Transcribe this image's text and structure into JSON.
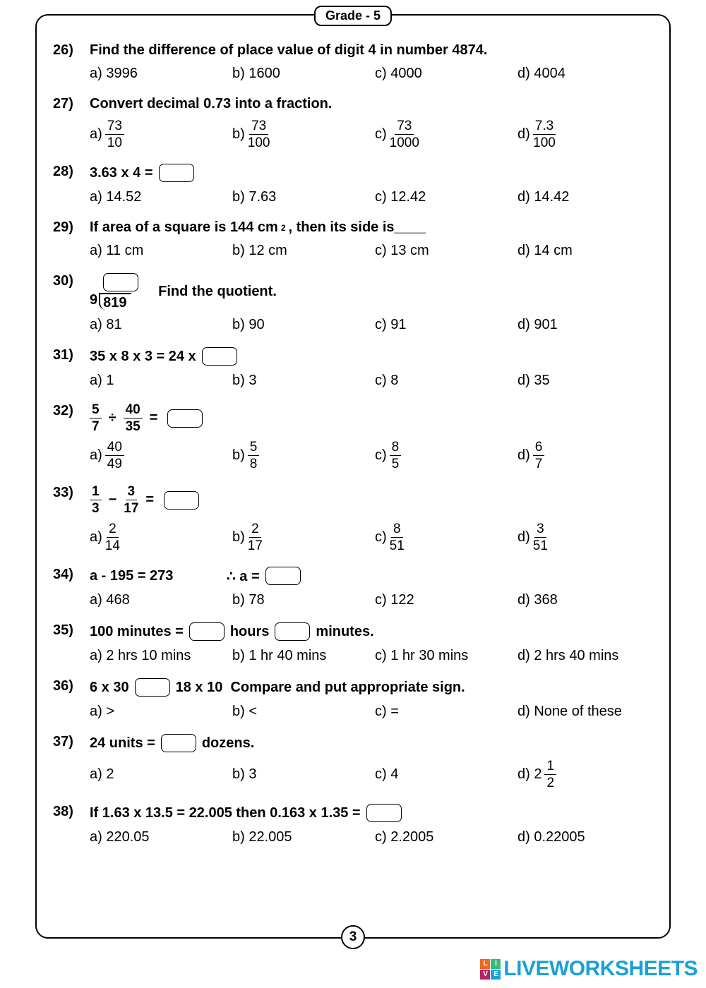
{
  "header": {
    "grade_label": "Grade - 5"
  },
  "footer": {
    "page_number": "3"
  },
  "watermark": {
    "text": "LIVEWORKSHEETS",
    "logo_colors": [
      "#f26522",
      "#3cb878",
      "#b72467",
      "#1aa0d8"
    ],
    "logo_letters": [
      "L",
      "I",
      "V",
      "E"
    ]
  },
  "questions": [
    {
      "num": "26)",
      "text": "Find the difference of place value of digit 4 in number 4874.",
      "opts": [
        "a) 3996",
        "b) 1600",
        "c) 4000",
        "d) 4004"
      ]
    },
    {
      "num": "27)",
      "text": "Convert decimal 0.73 into a fraction.",
      "opts_frac": [
        {
          "label": "a)",
          "n": "73",
          "d": "10"
        },
        {
          "label": "b)",
          "n": "73",
          "d": "100"
        },
        {
          "label": "c)",
          "n": "73",
          "d": "1000"
        },
        {
          "label": "d)",
          "n": "7.3",
          "d": "100"
        }
      ]
    },
    {
      "num": "28)",
      "text_parts": [
        "3.63 x 4 ="
      ],
      "opts": [
        "a) 14.52",
        "b) 7.63",
        "c) 12.42",
        "d) 14.42"
      ]
    },
    {
      "num": "29)",
      "text": "If area of a square is 144 cm², then its side is____",
      "opts": [
        "a) 11 cm",
        "b) 12 cm",
        "c) 13 cm",
        "d) 14 cm"
      ]
    },
    {
      "num": "30)",
      "longdiv": {
        "divisor": "9",
        "dividend": "819",
        "suffix": "Find the quotient."
      },
      "opts": [
        "a) 81",
        "b) 90",
        "c) 91",
        "d) 901"
      ]
    },
    {
      "num": "31)",
      "text_parts": [
        "35 x 8 x 3 = 24 x"
      ],
      "opts": [
        "a) 1",
        "b) 3",
        "c) 8",
        "d) 35"
      ]
    },
    {
      "num": "32)",
      "frac_expr": {
        "f1": {
          "n": "5",
          "d": "7"
        },
        "op": "÷",
        "f2": {
          "n": "40",
          "d": "35"
        },
        "eq": "="
      },
      "opts_frac": [
        {
          "label": "a)",
          "n": "40",
          "d": "49"
        },
        {
          "label": "b)",
          "n": "5",
          "d": "8"
        },
        {
          "label": "c)",
          "n": "8",
          "d": "5"
        },
        {
          "label": "d)",
          "n": "6",
          "d": "7"
        }
      ]
    },
    {
      "num": "33)",
      "frac_expr": {
        "f1": {
          "n": "1",
          "d": "3"
        },
        "op": "−",
        "f2": {
          "n": "3",
          "d": "17"
        },
        "eq": "="
      },
      "opts_frac": [
        {
          "label": "a)",
          "n": "2",
          "d": "14"
        },
        {
          "label": "b)",
          "n": "2",
          "d": "17"
        },
        {
          "label": "c)",
          "n": "8",
          "d": "51"
        },
        {
          "label": "d)",
          "n": "3",
          "d": "51"
        }
      ]
    },
    {
      "num": "34)",
      "text_parts2": {
        "left": "a - 195 = 273",
        "mid": "∴  a ="
      },
      "opts": [
        "a) 468",
        "b) 78",
        "c) 122",
        "d) 368"
      ]
    },
    {
      "num": "35)",
      "multi_box": {
        "pre": "100 minutes =",
        "mid": "hours",
        "post": "minutes."
      },
      "opts": [
        "a) 2 hrs 10 mins",
        "b) 1 hr 40 mins",
        "c) 1 hr 30 mins",
        "d) 2 hrs 40 mins"
      ]
    },
    {
      "num": "36)",
      "compare": {
        "left": "6 x 30",
        "right": "18 x 10",
        "suffix": "Compare and put appropriate sign."
      },
      "opts": [
        "a) >",
        "b) <",
        "c) =",
        "d) None of these"
      ]
    },
    {
      "num": "37)",
      "text_box_mid": {
        "pre": "24 units =",
        "post": "dozens."
      },
      "opts_mixed": [
        {
          "label": "a) 2"
        },
        {
          "label": "b) 3"
        },
        {
          "label": "c) 4"
        },
        {
          "label": "d) 2",
          "mixed": {
            "n": "1",
            "d": "2"
          }
        }
      ]
    },
    {
      "num": "38)",
      "text_parts": [
        "If 1.63 x 13.5 = 22.005  then 0.163 x 1.35 ="
      ],
      "opts": [
        "a) 220.05",
        "b) 22.005",
        "c) 2.2005",
        "d) 0.22005"
      ]
    }
  ]
}
